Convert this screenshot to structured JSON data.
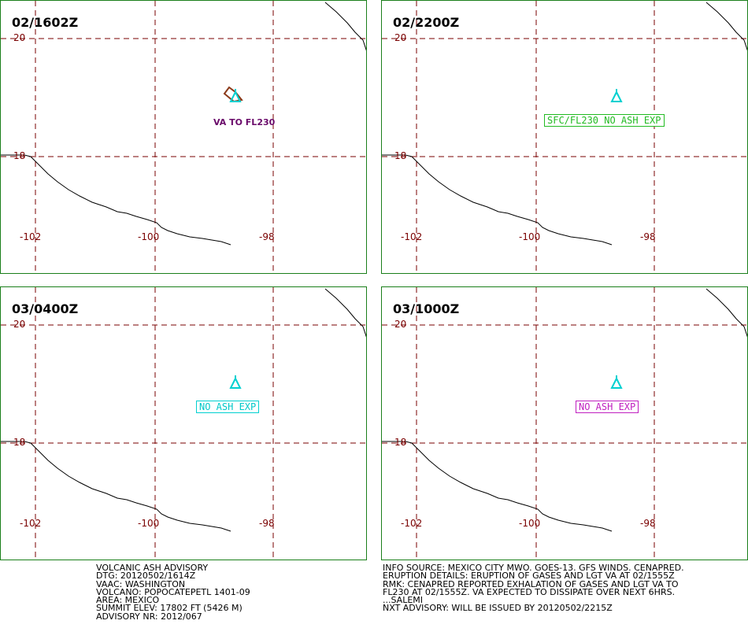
{
  "panels": [
    {
      "title": "02/1602Z",
      "lat_top": "20",
      "lat_bottom": "18",
      "lon_left": "-102",
      "lon_mid": "-100",
      "lon_right": "-98",
      "annotation": "VA TO FL230"
    },
    {
      "title": "02/2200Z",
      "lat_top": "20",
      "lat_bottom": "18",
      "lon_left": "-102",
      "lon_mid": "-100",
      "lon_right": "-98",
      "annotation": "SFC/FL230 NO ASH EXP"
    },
    {
      "title": "03/0400Z",
      "lat_top": "20",
      "lat_bottom": "18",
      "lon_left": "-102",
      "lon_mid": "-100",
      "lon_right": "-98",
      "annotation": "NO ASH EXP"
    },
    {
      "title": "03/1000Z",
      "lat_top": "20",
      "lat_bottom": "18",
      "lon_left": "-102",
      "lon_mid": "-100",
      "lon_right": "-98",
      "annotation": "NO ASH EXP"
    }
  ],
  "advisory": {
    "line1": "VOLCANIC ASH ADVISORY",
    "line2": "DTG: 20120502/1614Z",
    "line3": "VAAC: WASHINGTON",
    "line4": "VOLCANO: POPOCATEPETL 1401-09",
    "line5": "AREA: MEXICO",
    "line6": "SUMMIT ELEV: 17802 FT (5426 M)",
    "line7": "ADVISORY NR: 2012/067"
  },
  "details": {
    "line1": "INFO SOURCE: MEXICO CITY MWO. GOES-13. GFS WINDS. CENAPRED.",
    "line2": "ERUPTION DETAILS: ERUPTION OF GASES AND LGT VA AT 02/1555Z",
    "line3": "RMK: CENAPRED REPORTED EXHALATION OF GASES AND LGT VA TO",
    "line4": "FL230 AT 02/1555Z. VA EXPECTED TO DISSIPATE OVER NEXT 6HRS.",
    "line5": "...SALEMI",
    "line6": "NXT ADVISORY: WILL BE ISSUED BY 20120502/2215Z"
  },
  "colors": {
    "grid": "#7a0000",
    "border": "#1a7f1a",
    "volcano": "#00d0d0",
    "ash_polygon": "#8b3a1a",
    "coast": "#000000"
  },
  "icons": {
    "volcano": "volcano-icon"
  }
}
